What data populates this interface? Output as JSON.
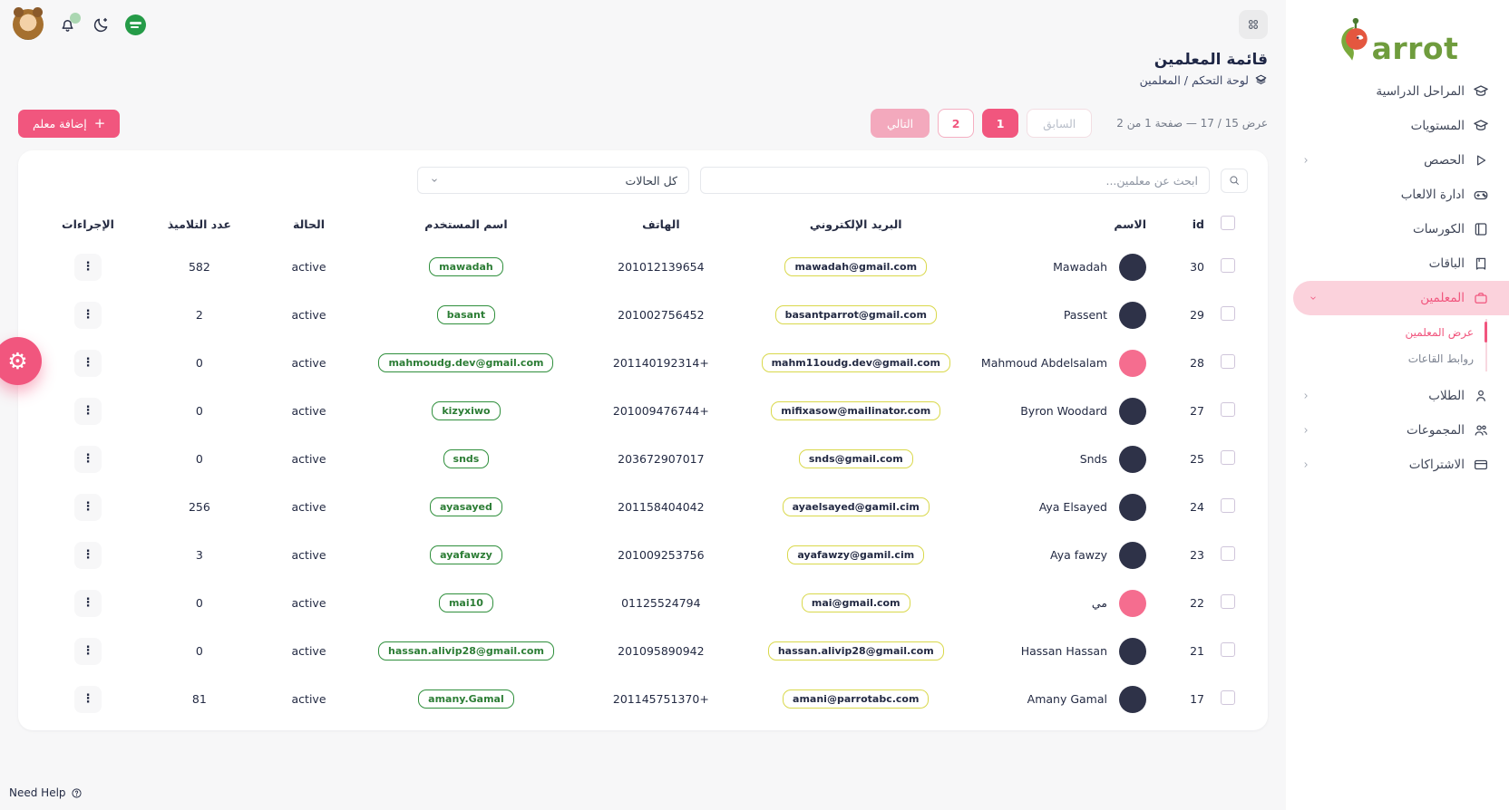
{
  "colors": {
    "primary_pink": "#f1567e",
    "active_pill_bg": "#fbd2dc",
    "logo_green": "#6f9c3d",
    "username_badge_green": "#2f8f3c",
    "email_badge_yellow": "#d9d84b",
    "avatar_dark": "#2e3248",
    "avatar_pink": "#f56d8f",
    "flag_green": "#259b48",
    "disabled_next_bg": "#f3a9bd"
  },
  "sidebar": {
    "logo_text": "arrot",
    "items": [
      {
        "label": "المراحل الدراسية",
        "icon": "grad-cap"
      },
      {
        "label": "المستويات",
        "icon": "grad-cap"
      },
      {
        "label": "الحصص",
        "icon": "play",
        "chevron": true
      },
      {
        "label": "ادارة الالعاب",
        "icon": "game"
      },
      {
        "label": "الكورسات",
        "icon": "book"
      },
      {
        "label": "الباقات",
        "icon": "package"
      },
      {
        "label": "المعلمين",
        "icon": "briefcase",
        "active": true,
        "expanded": true,
        "submenu": [
          {
            "label": "عرض المعلمين",
            "active": true
          },
          {
            "label": "روابط القاعات"
          }
        ]
      },
      {
        "label": "الطلاب",
        "icon": "person",
        "chevron": true
      },
      {
        "label": "المجموعات",
        "icon": "people",
        "chevron": true
      },
      {
        "label": "الاشتراكات",
        "icon": "card",
        "chevron": true
      }
    ]
  },
  "page": {
    "title": "قائمة المعلمين",
    "breadcrumb": "لوحة التحكم  /  المعلمين",
    "add_button_label": "إضافة معلم",
    "add_button_plus": "+"
  },
  "pagination": {
    "summary": "عرض 15 / 17 — صفحة 1 من 2",
    "previous": "السابق",
    "next": "التالي",
    "page_1": "1",
    "page_2": "2",
    "current_page": "1"
  },
  "filters": {
    "search_placeholder": "ابحث عن معلمين...",
    "status_filter": "كل الحالات"
  },
  "table": {
    "headers": [
      "id",
      "الاسم",
      "البريد الإلكتروني",
      "الهاتف",
      "اسم المستخدم",
      "الحالة",
      "عدد التلاميذ",
      "الإجراءات"
    ],
    "rows": [
      {
        "id": "30",
        "name": "Mawadah",
        "avatar": "dark",
        "email": "mawadah@gmail.com",
        "phone": "201012139654",
        "username": "mawadah",
        "status": "active",
        "students": "582"
      },
      {
        "id": "29",
        "name": "Passent",
        "avatar": "dark",
        "email": "basantparrot@gmail.com",
        "phone": "201002756452",
        "username": "basant",
        "status": "active",
        "students": "2"
      },
      {
        "id": "28",
        "name": "Mahmoud Abdelsalam",
        "avatar": "pink",
        "email": "mahm11oudg.dev@gmail.com",
        "phone": "201140192314+",
        "username": "mahmoudg.dev@gmail.com",
        "status": "active",
        "students": "0"
      },
      {
        "id": "27",
        "name": "Byron Woodard",
        "avatar": "dark",
        "email": "mifixasow@mailinator.com",
        "phone": "201009476744+",
        "username": "kizyxiwo",
        "status": "active",
        "students": "0"
      },
      {
        "id": "25",
        "name": "Snds",
        "avatar": "dark",
        "email": "snds@gmail.com",
        "phone": "203672907017",
        "username": "snds",
        "status": "active",
        "students": "0"
      },
      {
        "id": "24",
        "name": "Aya Elsayed",
        "avatar": "dark",
        "email": "ayaelsayed@gamil.cim",
        "phone": "201158404042",
        "username": "ayasayed",
        "status": "active",
        "students": "256"
      },
      {
        "id": "23",
        "name": "Aya fawzy",
        "avatar": "dark",
        "email": "ayafawzy@gamil.cim",
        "phone": "201009253756",
        "username": "ayafawzy",
        "status": "active",
        "students": "3"
      },
      {
        "id": "22",
        "name": "مي",
        "avatar": "pink",
        "email": "mai@gmail.com",
        "phone": "01125524794",
        "username": "mai10",
        "status": "active",
        "students": "0"
      },
      {
        "id": "21",
        "name": "Hassan Hassan",
        "avatar": "dark",
        "email": "hassan.alivip28@gmail.com",
        "phone": "201095890942",
        "username": "hassan.alivip28@gmail.com",
        "status": "active",
        "students": "0"
      },
      {
        "id": "17",
        "name": "Amany Gamal",
        "avatar": "dark",
        "email": "amani@parrotabc.com",
        "phone": "201145751370+",
        "username": "amany.Gamal",
        "status": "active",
        "students": "81"
      }
    ]
  },
  "footer": {
    "need_help": "Need Help"
  }
}
